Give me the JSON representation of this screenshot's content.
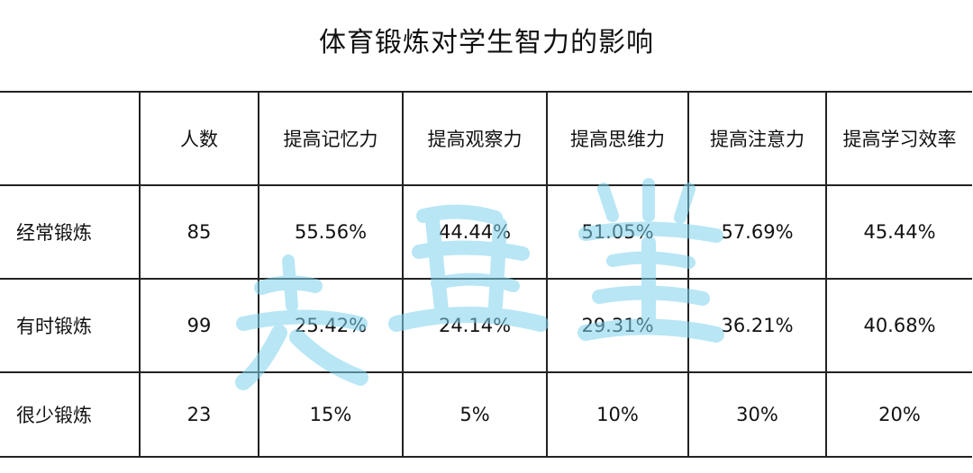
{
  "title": "体育锻炼对学生智力的影响",
  "table": {
    "headers": [
      "",
      "人数",
      "提高记忆力",
      "提高观察力",
      "提高思维力",
      "提高注意力",
      "提高学习效率"
    ],
    "rows": [
      [
        "经常锻炼",
        "85",
        "55.56%",
        "44.44%",
        "51.05%",
        "57.69%",
        "45.44%"
      ],
      [
        "有时锻炼",
        "99",
        "25.42%",
        "24.14%",
        "29.31%",
        "36.21%",
        "40.68%"
      ],
      [
        "很少锻炼",
        "23",
        "15%",
        "5%",
        "10%",
        "30%",
        "20%"
      ]
    ]
  },
  "watermark": {
    "color": "#7fd3ee"
  }
}
